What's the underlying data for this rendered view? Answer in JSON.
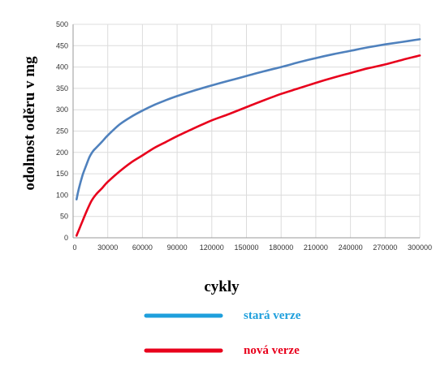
{
  "chart_data": {
    "type": "line",
    "title": "",
    "xlabel": "cykly",
    "ylabel": "odolnost oděru v mg",
    "xlim": [
      0,
      300000
    ],
    "ylim": [
      0,
      500
    ],
    "xticks": [
      30000,
      60000,
      90000,
      120000,
      150000,
      180000,
      210000,
      240000,
      270000,
      300000
    ],
    "yticks": [
      0,
      50,
      100,
      150,
      200,
      250,
      300,
      350,
      400,
      450,
      500
    ],
    "grid": true,
    "legend_position": "bottom",
    "series": [
      {
        "name": "stará verze",
        "color": "#4f81bd",
        "x": [
          3000,
          5000,
          8000,
          10000,
          14000,
          17000,
          20000,
          25000,
          30000,
          40000,
          50000,
          60000,
          70000,
          80000,
          90000,
          105000,
          120000,
          135000,
          150000,
          165000,
          180000,
          195000,
          210000,
          225000,
          240000,
          255000,
          270000,
          285000,
          300000
        ],
        "y": [
          90,
          115,
          145,
          160,
          188,
          202,
          211,
          225,
          240,
          265,
          283,
          298,
          311,
          322,
          332,
          345,
          357,
          368,
          379,
          390,
          400,
          411,
          421,
          430,
          438,
          446,
          453,
          459,
          465
        ]
      },
      {
        "name": "nová verze",
        "color": "#e8001c",
        "x": [
          3000,
          5000,
          8000,
          12000,
          16000,
          20000,
          25000,
          30000,
          40000,
          50000,
          60000,
          70000,
          80000,
          90000,
          105000,
          120000,
          135000,
          150000,
          165000,
          180000,
          195000,
          210000,
          225000,
          240000,
          255000,
          270000,
          285000,
          300000
        ],
        "y": [
          5,
          18,
          38,
          64,
          87,
          102,
          116,
          131,
          155,
          176,
          193,
          210,
          224,
          238,
          257,
          275,
          290,
          306,
          322,
          337,
          350,
          363,
          375,
          386,
          397,
          406,
          417,
          427
        ]
      }
    ],
    "legend": [
      {
        "label": "stará verze",
        "swatch_color": "#1e9fdc",
        "text_color": "#1e9fdc"
      },
      {
        "label": "nová verze",
        "swatch_color": "#e8001c",
        "text_color": "#e8001c"
      }
    ]
  }
}
